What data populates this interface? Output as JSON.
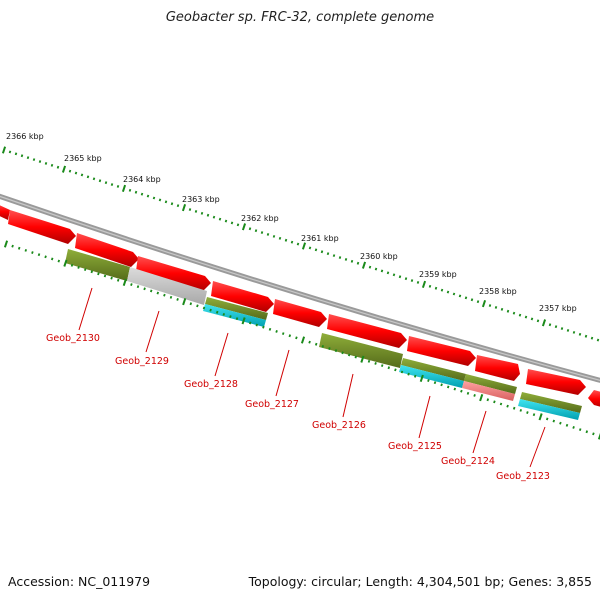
{
  "title": "Geobacter sp. FRC-32, complete genome",
  "footer": {
    "accession": "Accession: NC_011979",
    "summary": "Topology: circular; Length: 4,304,501 bp; Genes: 3,855"
  },
  "ruler": {
    "labels": [
      "2366 kbp",
      "2365 kbp",
      "2364 kbp",
      "2363 kbp",
      "2362 kbp",
      "2361 kbp",
      "2360 kbp",
      "2359 kbp",
      "2358 kbp",
      "2357 kbp"
    ]
  },
  "genes": [
    "Geob_2130",
    "Geob_2129",
    "Geob_2128",
    "Geob_2127",
    "Geob_2126",
    "Geob_2125",
    "Geob_2124",
    "Geob_2123"
  ],
  "colors": {
    "cds": "#ff0000",
    "olive": "#6b8e23",
    "grey": "#c0c0c0",
    "cyan": "#00c8d8",
    "pink": "#f08080",
    "backbone": "#808080",
    "ticks": "#1a8a1a",
    "label": "#d00000"
  }
}
